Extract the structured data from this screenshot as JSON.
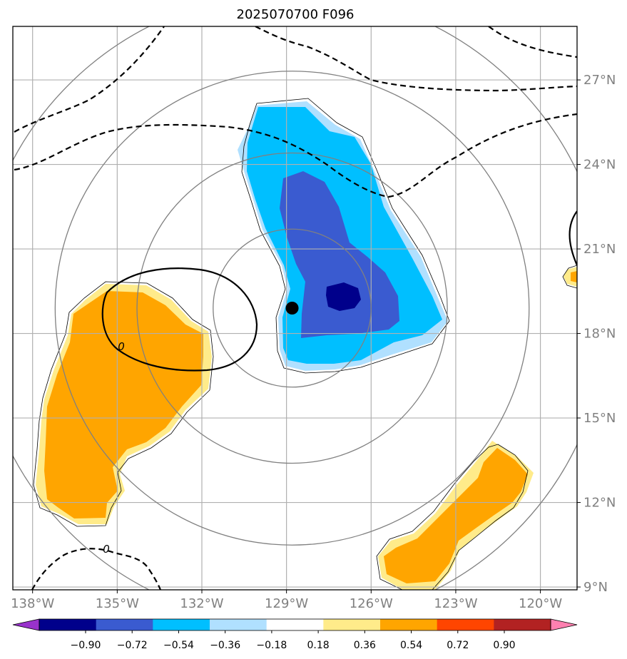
{
  "title": "2025070700 F096",
  "chart_data": {
    "type": "heatmap",
    "title": "2025070700 F096",
    "x_ticks": [
      "138°W",
      "135°W",
      "132°W",
      "129°W",
      "126°W",
      "123°W",
      "120°W"
    ],
    "x_tick_values": [
      -138,
      -135,
      -132,
      -129,
      -126,
      -123,
      -120
    ],
    "y_ticks": [
      "9°N",
      "12°N",
      "15°N",
      "18°N",
      "21°N",
      "24°N",
      "27°N"
    ],
    "y_tick_values": [
      9,
      12,
      15,
      18,
      21,
      24,
      27
    ],
    "xlim": [
      -138.7,
      -118.7
    ],
    "ylim": [
      8.9,
      28.9
    ],
    "grid": true,
    "center": {
      "lon": -128.8,
      "lat": 18.9
    },
    "range_rings_deg": [
      2.8,
      5.5,
      8.4,
      11.2
    ],
    "contour_label": "0",
    "colorbar": {
      "ticks": [
        "−0.90",
        "−0.72",
        "−0.54",
        "−0.36",
        "−0.18",
        "0.18",
        "0.36",
        "0.54",
        "0.72",
        "0.90"
      ],
      "levels": [
        -0.9,
        -0.72,
        -0.54,
        -0.36,
        -0.18,
        0.18,
        0.36,
        0.54,
        0.72,
        0.9
      ],
      "colors": [
        "#9932cc",
        "#00008b",
        "#3a5bd0",
        "#00bfff",
        "#b0e0ff",
        "#ffffff",
        "#ffeb8a",
        "#ffa500",
        "#ff4500",
        "#b22222",
        "#ff80b0"
      ]
    },
    "regions": [
      {
        "name": "negative-anomaly",
        "range": [
          -0.9,
          -0.18
        ],
        "centroid": [
          -127.5,
          21.0
        ]
      },
      {
        "name": "positive-anomaly-west",
        "range": [
          0.18,
          0.54
        ],
        "centroid": [
          -135.0,
          15.0
        ]
      },
      {
        "name": "positive-anomaly-southeast",
        "range": [
          0.18,
          0.54
        ],
        "centroid": [
          -123.0,
          11.0
        ]
      }
    ]
  }
}
